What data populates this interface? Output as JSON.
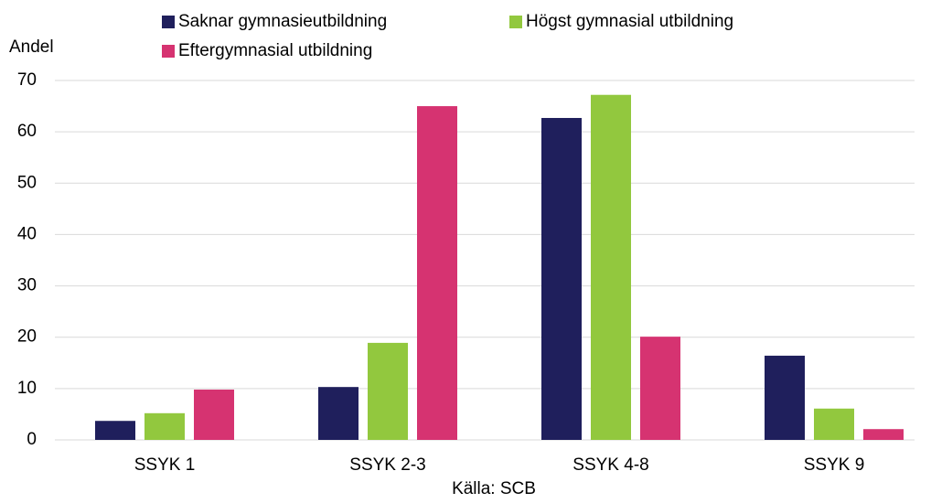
{
  "chart_data": {
    "type": "bar",
    "y_label": "Andel",
    "source": "Källa: SCB",
    "categories": [
      "SSYK 1",
      "SSYK 2-3",
      "SSYK 4-8",
      "SSYK 9"
    ],
    "series": [
      {
        "name": "Saknar gymnasieutbildning",
        "color": "#1f1f5c",
        "values": [
          3.7,
          10.3,
          62.7,
          16.4
        ]
      },
      {
        "name": "Högst gymnasial utbildning",
        "color": "#92c83e",
        "values": [
          5.2,
          18.9,
          67.2,
          6.1
        ]
      },
      {
        "name": "Eftergymnasial utbildning",
        "color": "#d63371",
        "values": [
          9.8,
          65.0,
          20.1,
          2.1
        ]
      }
    ],
    "ylim": [
      0,
      70
    ],
    "yticks": [
      0,
      10,
      20,
      30,
      40,
      50,
      60,
      70
    ],
    "grid": true,
    "legend": "top"
  }
}
